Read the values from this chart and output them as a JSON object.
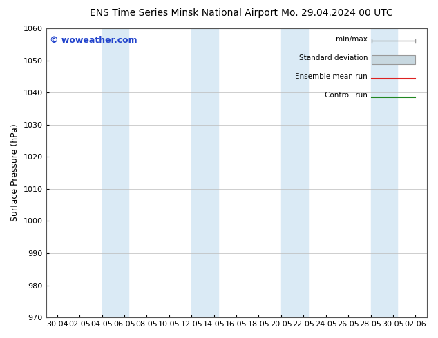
{
  "title_left": "ENS Time Series Minsk National Airport",
  "title_right": "Mo. 29.04.2024 00 UTC",
  "ylabel": "Surface Pressure (hPa)",
  "ylim": [
    970,
    1060
  ],
  "yticks": [
    970,
    980,
    990,
    1000,
    1010,
    1020,
    1030,
    1040,
    1050,
    1060
  ],
  "x_labels": [
    "30.04",
    "02.05",
    "04.05",
    "06.05",
    "08.05",
    "10.05",
    "12.05",
    "14.05",
    "16.05",
    "18.05",
    "20.05",
    "22.05",
    "24.05",
    "26.05",
    "28.05",
    "30.05",
    "02.06"
  ],
  "watermark": "© woweather.com",
  "bg_color": "#ffffff",
  "band_color": "#daeaf5",
  "grid_color": "#bbbbbb",
  "legend_items": [
    "min/max",
    "Standard deviation",
    "Ensemble mean run",
    "Controll run"
  ],
  "legend_line_colors": [
    "#999999",
    "#bbcccc",
    "#dd2222",
    "#228822"
  ],
  "tick_fontsize": 8,
  "ylabel_fontsize": 9,
  "title_fontsize": 10,
  "watermark_color": "#2244cc",
  "watermark_fontsize": 9
}
